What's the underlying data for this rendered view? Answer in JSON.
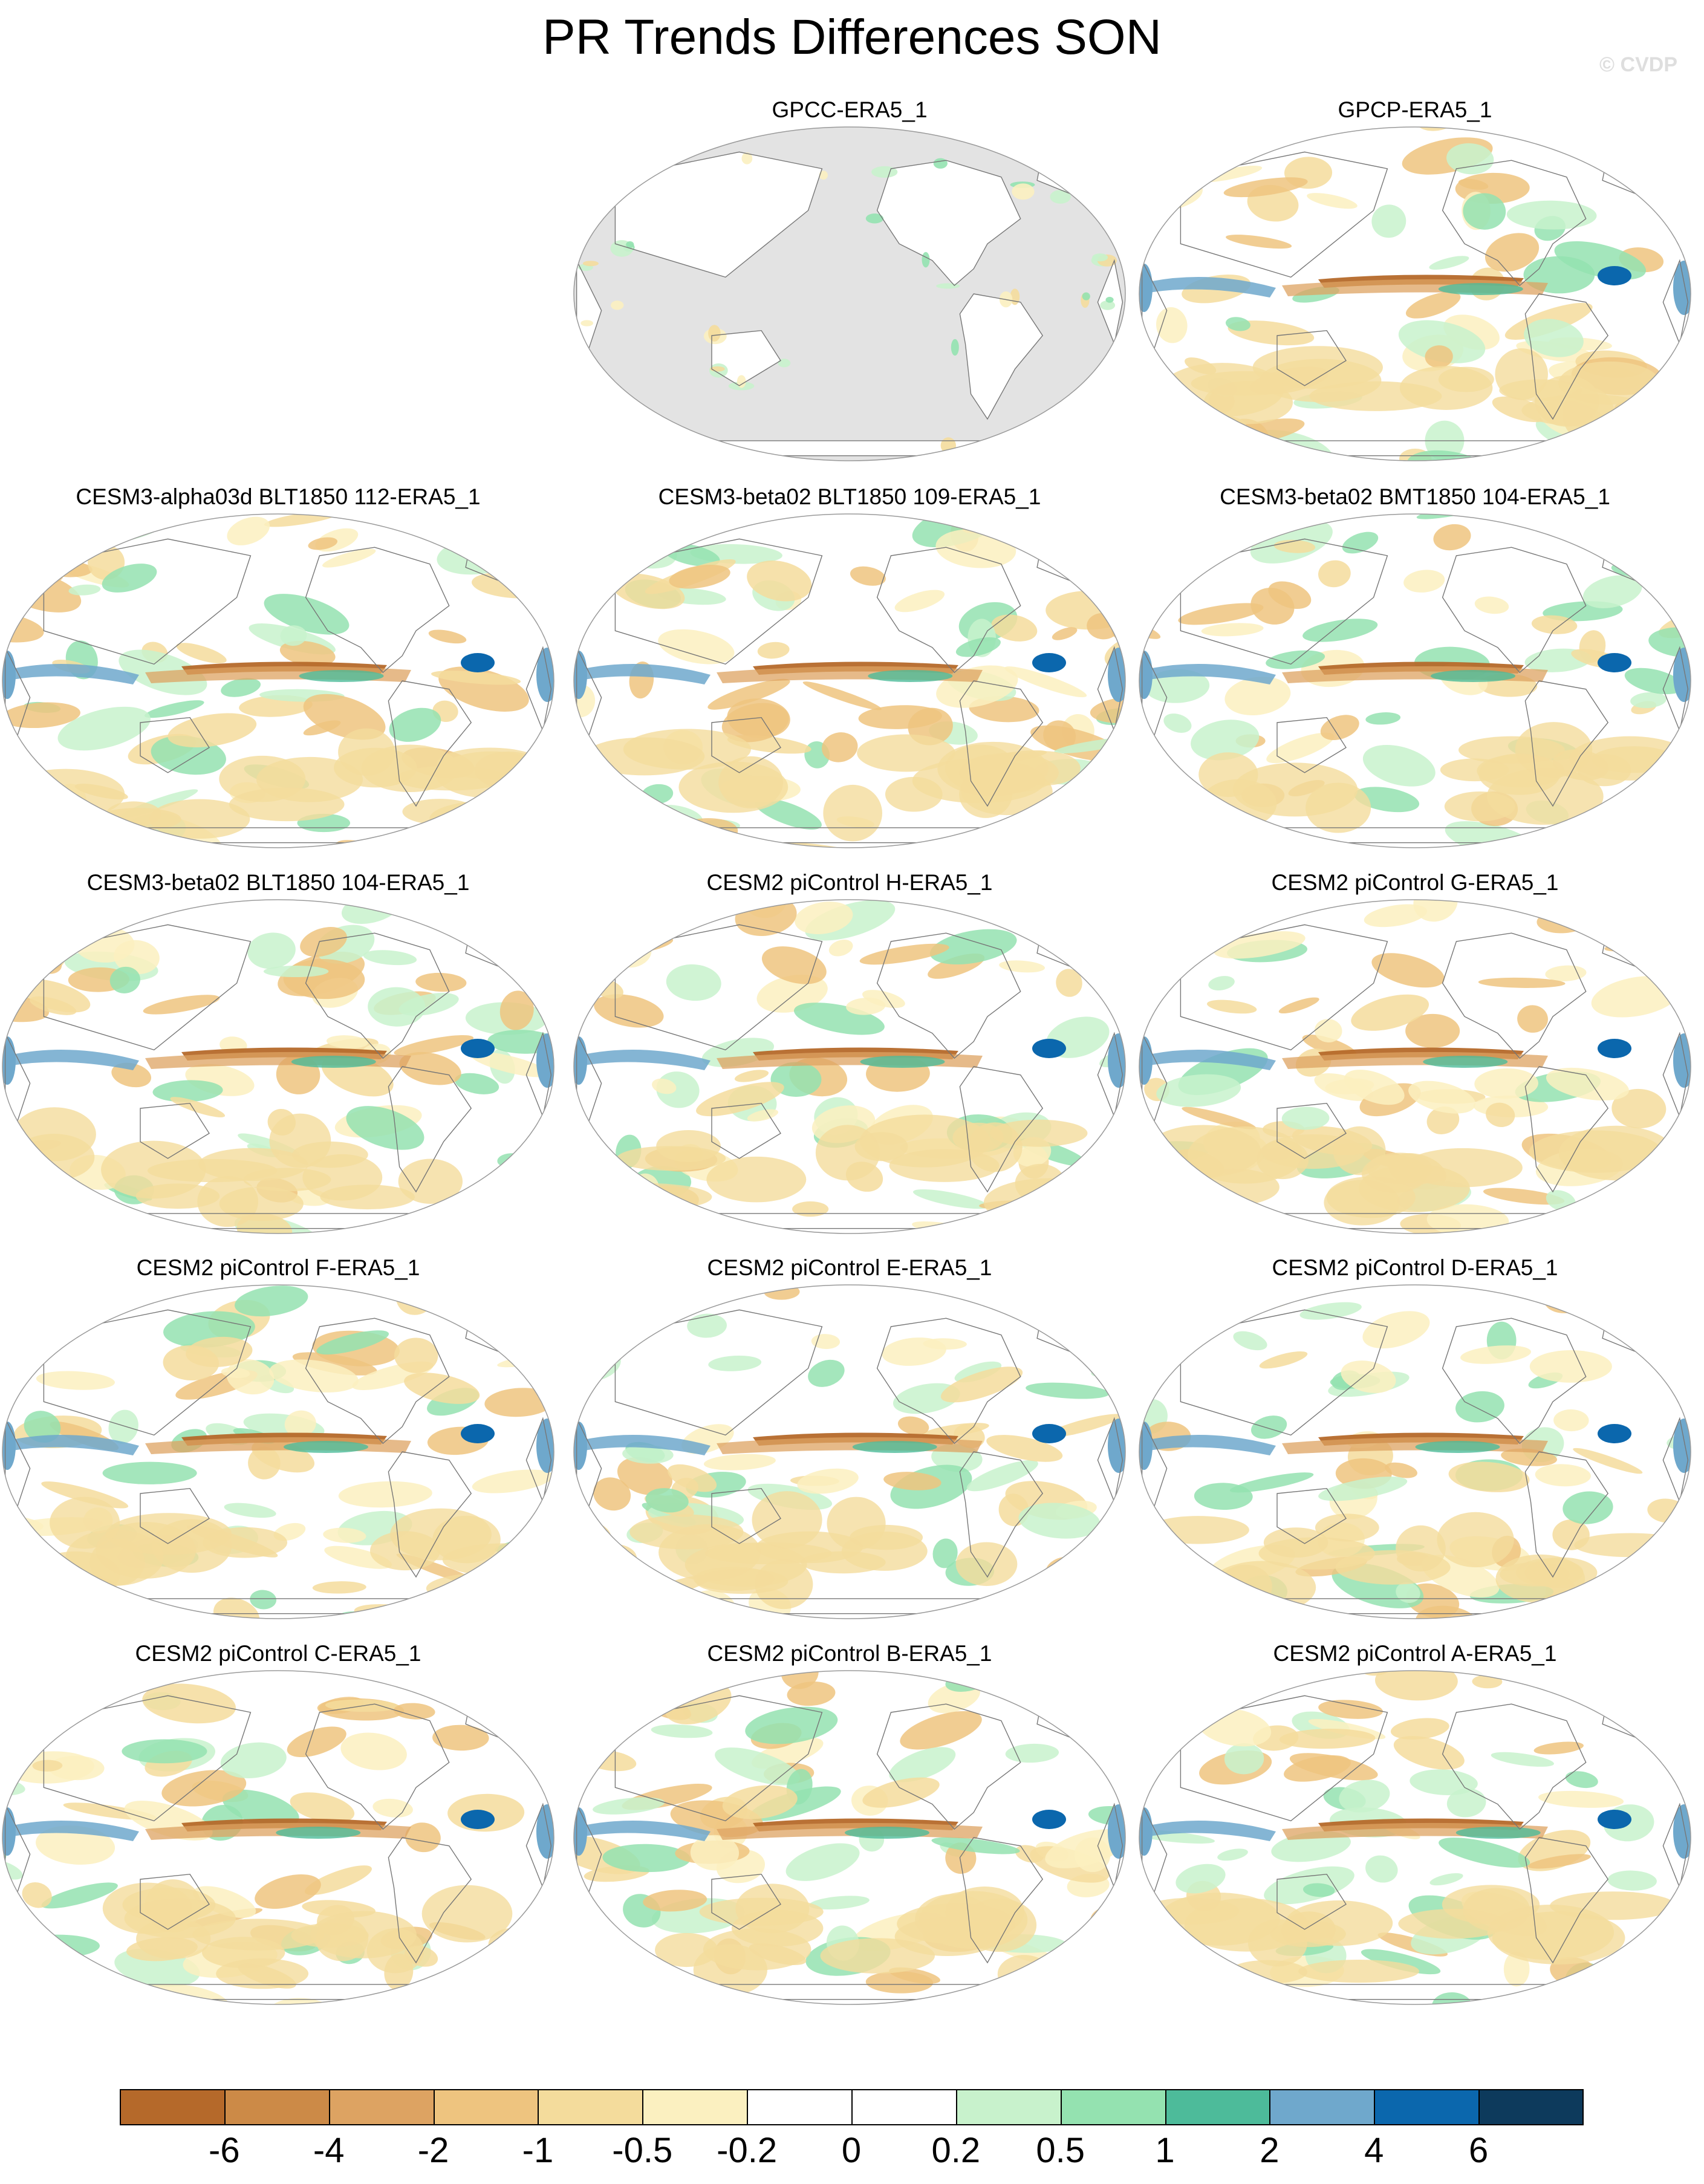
{
  "title": "PR Trends Differences SON",
  "watermark": "© CVDP",
  "panels": [
    {
      "label": "GPCC-ERA5_1",
      "land_only": true
    },
    {
      "label": "GPCP-ERA5_1",
      "land_only": false
    },
    {
      "label": "CESM3-alpha03d BLT1850 112-ERA5_1",
      "land_only": false
    },
    {
      "label": "CESM3-beta02 BLT1850 109-ERA5_1",
      "land_only": false
    },
    {
      "label": "CESM3-beta02 BMT1850 104-ERA5_1",
      "land_only": false
    },
    {
      "label": "CESM3-beta02 BLT1850 104-ERA5_1",
      "land_only": false
    },
    {
      "label": "CESM2 piControl H-ERA5_1",
      "land_only": false
    },
    {
      "label": "CESM2 piControl G-ERA5_1",
      "land_only": false
    },
    {
      "label": "CESM2 piControl F-ERA5_1",
      "land_only": false
    },
    {
      "label": "CESM2 piControl E-ERA5_1",
      "land_only": false
    },
    {
      "label": "CESM2 piControl D-ERA5_1",
      "land_only": false
    },
    {
      "label": "CESM2 piControl C-ERA5_1",
      "land_only": false
    },
    {
      "label": "CESM2 piControl B-ERA5_1",
      "land_only": false
    },
    {
      "label": "CESM2 piControl A-ERA5_1",
      "land_only": false
    }
  ],
  "colorbar": {
    "labels": [
      "-6",
      "-4",
      "-2",
      "-1",
      "-0.5",
      "-0.2",
      "0",
      "0.2",
      "0.5",
      "1",
      "2",
      "4",
      "6"
    ],
    "colors": [
      "#b5692a",
      "#cc8a47",
      "#dda362",
      "#eec47f",
      "#f4dc9c",
      "#fbf0c0",
      "#ffffff",
      "#ffffff",
      "#c8f2cc",
      "#94e2b0",
      "#4dbb9a",
      "#6fa8cc",
      "#0b67ad",
      "#0d3a5c"
    ]
  },
  "map_colors": {
    "ocean_missing": "#e3e3e3",
    "coast": "#777777",
    "border": "#9a9a9a"
  }
}
